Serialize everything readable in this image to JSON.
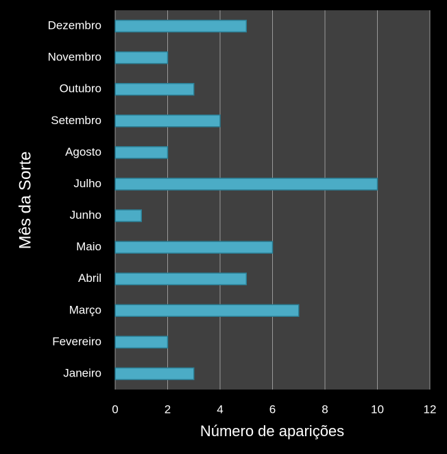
{
  "chart_data": {
    "type": "bar",
    "orientation": "horizontal",
    "x_label": "Número de aparições",
    "y_label": "Mês da Sorte",
    "categories": [
      "Janeiro",
      "Fevereiro",
      "Março",
      "Abril",
      "Maio",
      "Junho",
      "Julho",
      "Agosto",
      "Setembro",
      "Outubro",
      "Novembro",
      "Dezembro"
    ],
    "values": [
      3,
      2,
      7,
      5,
      6,
      1,
      10,
      2,
      4,
      3,
      2,
      5
    ],
    "color": "#4bacc6",
    "xlim": [
      0,
      12
    ],
    "xticks": [
      0,
      2,
      4,
      6,
      8,
      10,
      12
    ],
    "grid": true
  }
}
